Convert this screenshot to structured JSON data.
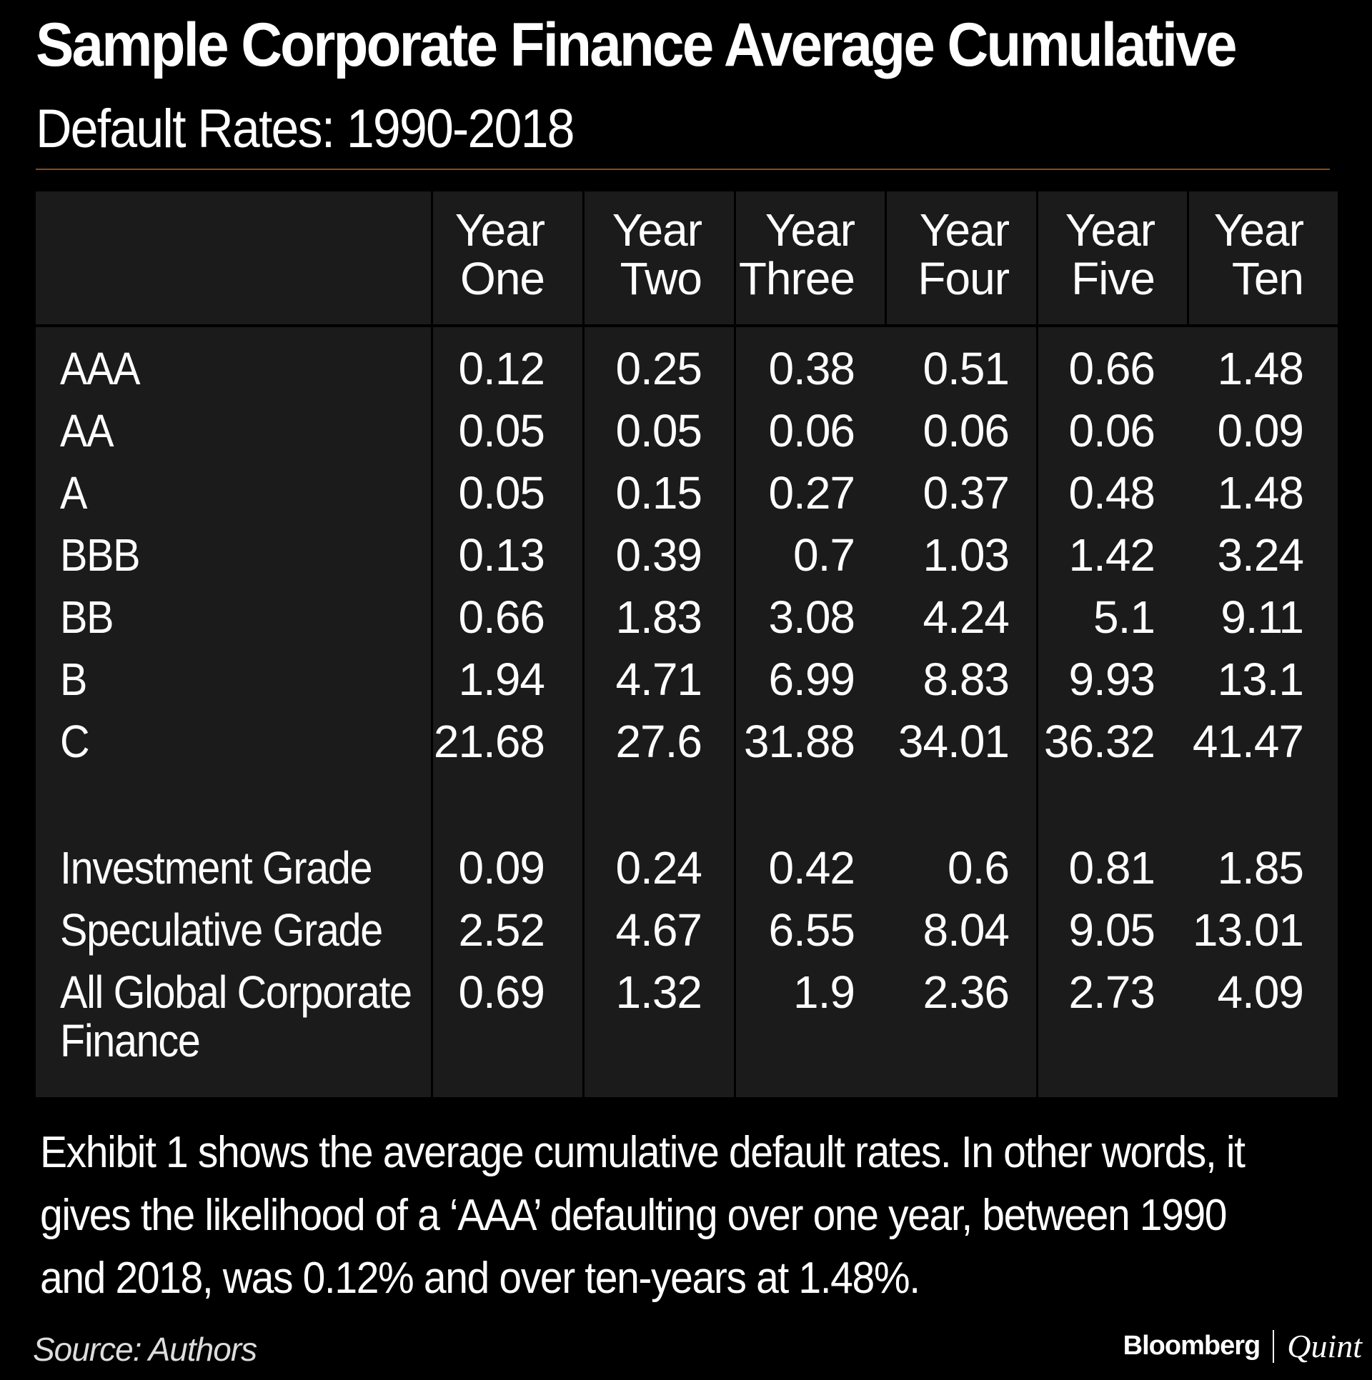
{
  "title": "Sample Corporate Finance Average Cumulative",
  "subtitle": "Default Rates: 1990-2018",
  "chart_data": {
    "type": "table",
    "columns": [
      {
        "line1": "Year",
        "line2": "One"
      },
      {
        "line1": "Year",
        "line2": "Two"
      },
      {
        "line1": "Year",
        "line2": "Three"
      },
      {
        "line1": "Year",
        "line2": "Four"
      },
      {
        "line1": "Year",
        "line2": "Five"
      },
      {
        "line1": "Year",
        "line2": "Ten"
      }
    ],
    "rows": [
      {
        "label": "AAA",
        "values": [
          "0.12",
          "0.25",
          "0.38",
          "0.51",
          "0.66",
          "1.48"
        ]
      },
      {
        "label": "AA",
        "values": [
          "0.05",
          "0.05",
          "0.06",
          "0.06",
          "0.06",
          "0.09"
        ]
      },
      {
        "label": "A",
        "values": [
          "0.05",
          "0.15",
          "0.27",
          "0.37",
          "0.48",
          "1.48"
        ]
      },
      {
        "label": "BBB",
        "values": [
          "0.13",
          "0.39",
          "0.7",
          "1.03",
          "1.42",
          "3.24"
        ]
      },
      {
        "label": "BB",
        "values": [
          "0.66",
          "1.83",
          "3.08",
          "4.24",
          "5.1",
          "9.11"
        ]
      },
      {
        "label": "B",
        "values": [
          "1.94",
          "4.71",
          "6.99",
          "8.83",
          "9.93",
          "13.1"
        ]
      },
      {
        "label": "C",
        "values": [
          "21.68",
          "27.6",
          "31.88",
          "34.01",
          "36.32",
          "41.47"
        ]
      },
      {
        "label": "Investment Grade",
        "values": [
          "0.09",
          "0.24",
          "0.42",
          "0.6",
          "0.81",
          "1.85"
        ]
      },
      {
        "label": "Speculative Grade",
        "values": [
          "2.52",
          "4.67",
          "6.55",
          "8.04",
          "9.05",
          "13.01"
        ]
      },
      {
        "label": "All Global Corporate",
        "label2": "Finance",
        "values": [
          "0.69",
          "1.32",
          "1.9",
          "2.36",
          "2.73",
          "4.09"
        ]
      }
    ]
  },
  "note": "Exhibit 1 shows the average cumulative default rates. In other words, it gives the likelihood of a ‘AAA’ defaulting over one year, between 1990 and 2018, was 0.12% and over ten-years at 1.48%.",
  "source": "Source: Authors",
  "brand": {
    "name1": "Bloomberg",
    "name2": "Quint"
  },
  "colors": {
    "background": "#000000",
    "panel": "#1b1b1b",
    "rule": "#8a4b14",
    "text": "#ffffff"
  }
}
